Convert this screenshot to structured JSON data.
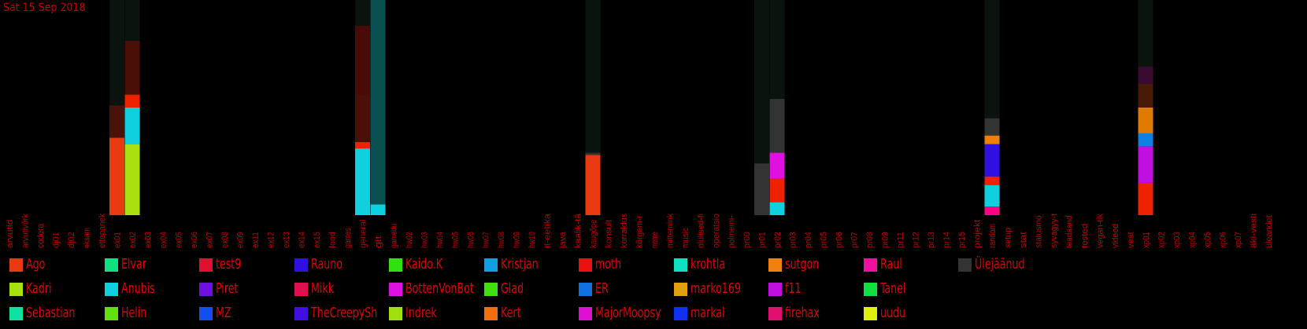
{
  "date": "Sat 15 Sep 2018",
  "colors": {
    "background": "#000000",
    "text": "#cc0000",
    "track": "#0b130f"
  },
  "chart_data": {
    "type": "bar",
    "stacked": true,
    "ylim": [
      0,
      100
    ],
    "categories": [
      "arvutid",
      "arvutivõrk",
      "codera",
      "dj01",
      "dj02",
      "eksam",
      "ettepanek",
      "ex01",
      "ex02",
      "ex03",
      "ex04",
      "ex05",
      "ex06",
      "ex07",
      "ex08",
      "ex09",
      "ex11",
      "ex12",
      "ex13",
      "ex14",
      "ex15",
      "food",
      "games",
      "general",
      "git",
      "gamedu",
      "hw02",
      "hw03",
      "hw04",
      "hw05",
      "hw06",
      "hw07",
      "hw08",
      "hw09",
      "hw10",
      "it-eetika",
      "java",
      "kaalik-tä",
      "kaugõpe",
      "konsult",
      "korraldus",
      "kõrgem-r",
      "meme",
      "mittemink",
      "music",
      "olulised-fi",
      "operatsio",
      "polmemi-",
      "pr00",
      "pr01",
      "pr02",
      "pr03",
      "pr04",
      "pr05",
      "pr06",
      "pr07",
      "pr08",
      "pr09",
      "pr11",
      "pr12",
      "pr13",
      "pr14",
      "pr15",
      "projekt",
      "random",
      "setup",
      "stat",
      "statusmo",
      "syvagyy-t",
      "teadaand",
      "tested",
      "vegan-tik",
      "videod",
      "vest",
      "xp01",
      "xp02",
      "xp03",
      "xp04",
      "xp05",
      "xp06",
      "xp07",
      "äki-vesti",
      "üleandet"
    ],
    "bars": [
      {
        "category": "ex01",
        "total": 100,
        "segments": [
          {
            "name": "Ago",
            "value": 36,
            "color": "#e83a10"
          },
          {
            "name": "moth",
            "value": 15,
            "color": "#4a1208"
          }
        ]
      },
      {
        "category": "ex02",
        "total": 100,
        "segments": [
          {
            "name": "Kadri",
            "value": 33,
            "color": "#a8e010"
          },
          {
            "name": "Anubis",
            "value": 17,
            "color": "#10d0e0"
          },
          {
            "name": "moth",
            "value": 6,
            "color": "#ee2200"
          },
          {
            "name": "Raul",
            "value": 25,
            "color": "#4a1008"
          }
        ]
      },
      {
        "category": "general",
        "total": 100,
        "segments": [
          {
            "name": "Anubis",
            "value": 31,
            "color": "#10d0e0"
          },
          {
            "name": "Ago",
            "value": 3,
            "color": "#ee2200"
          },
          {
            "name": "moth",
            "value": 22,
            "color": "#4a1008"
          },
          {
            "name": "Raul",
            "value": 32,
            "color": "#4a0a08"
          }
        ]
      },
      {
        "category": "git",
        "total": 100,
        "segments": [
          {
            "name": "Anubis",
            "value": 5,
            "color": "#10d0e0"
          },
          {
            "name": "Ülejäänud",
            "value": 95,
            "color": "#0b5050"
          }
        ]
      },
      {
        "category": "kaugõpe",
        "total": 100,
        "segments": [
          {
            "name": "Ago",
            "value": 28,
            "color": "#e83a10"
          },
          {
            "name": "Ülejäänud",
            "value": 1,
            "color": "#333333"
          }
        ]
      },
      {
        "category": "pr01",
        "total": 100,
        "segments": [
          {
            "name": "Ülejäänud",
            "value": 24,
            "color": "#333333"
          }
        ]
      },
      {
        "category": "pr02",
        "total": 100,
        "segments": [
          {
            "name": "Anubis",
            "value": 6,
            "color": "#10d0e0"
          },
          {
            "name": "moth",
            "value": 11,
            "color": "#ee2200"
          },
          {
            "name": "BottenVonBot",
            "value": 12,
            "color": "#e010e0"
          },
          {
            "name": "Ülejäänud",
            "value": 25,
            "color": "#333333"
          }
        ]
      },
      {
        "category": "random",
        "total": 100,
        "segments": [
          {
            "name": "Raul",
            "value": 4,
            "color": "#ff0080"
          },
          {
            "name": "Anubis",
            "value": 10,
            "color": "#10d0e0"
          },
          {
            "name": "moth",
            "value": 4,
            "color": "#ee2200"
          },
          {
            "name": "Rauno",
            "value": 15,
            "color": "#3010e0"
          },
          {
            "name": "sutgon",
            "value": 4,
            "color": "#f08000"
          },
          {
            "name": "Ülejäänud",
            "value": 8,
            "color": "#333333"
          }
        ]
      },
      {
        "category": "xp01",
        "total": 100,
        "segments": [
          {
            "name": "moth",
            "value": 15,
            "color": "#ee2200"
          },
          {
            "name": "f11",
            "value": 17,
            "color": "#c010e0"
          },
          {
            "name": "Kristjan",
            "value": 6,
            "color": "#1080e0"
          },
          {
            "name": "sutgon",
            "value": 12,
            "color": "#e07a00"
          },
          {
            "name": "Raul",
            "value": 11,
            "color": "#4a1a08"
          },
          {
            "name": "Elvar",
            "value": 8,
            "color": "#3a0a30"
          }
        ]
      }
    ],
    "legend": [
      {
        "name": "Ago",
        "color": "#e83a10"
      },
      {
        "name": "Kadri",
        "color": "#a8e010"
      },
      {
        "name": "Sebastian",
        "color": "#10e0a0"
      },
      {
        "name": "Elvar",
        "color": "#10e080"
      },
      {
        "name": "Anubis",
        "color": "#10d0e0"
      },
      {
        "name": "Helin",
        "color": "#60e010"
      },
      {
        "name": "test9",
        "color": "#e01030"
      },
      {
        "name": "Piret",
        "color": "#7010e0"
      },
      {
        "name": "MZ",
        "color": "#1050f0"
      },
      {
        "name": "Rauno",
        "color": "#3010e0"
      },
      {
        "name": "Mikk",
        "color": "#e01050"
      },
      {
        "name": "TheCreepySh",
        "color": "#4010e0"
      },
      {
        "name": "Kaido.K",
        "color": "#30e010"
      },
      {
        "name": "BottenVonBot",
        "color": "#e010e0"
      },
      {
        "name": "Indrek",
        "color": "#a0e010"
      },
      {
        "name": "Kristjan",
        "color": "#10a0e0"
      },
      {
        "name": "Glad",
        "color": "#40e010"
      },
      {
        "name": "Kert",
        "color": "#f07010"
      },
      {
        "name": "moth",
        "color": "#ee1010"
      },
      {
        "name": "ER",
        "color": "#1070e0"
      },
      {
        "name": "MajorMoopsy",
        "color": "#e010d0"
      },
      {
        "name": "krohtla",
        "color": "#10e0c0"
      },
      {
        "name": "marko169",
        "color": "#e0a010"
      },
      {
        "name": "markal",
        "color": "#1030f0"
      },
      {
        "name": "sutgon",
        "color": "#f08010"
      },
      {
        "name": "f11",
        "color": "#c010e0"
      },
      {
        "name": "firehax",
        "color": "#e01070"
      },
      {
        "name": "Raul",
        "color": "#f010a0"
      },
      {
        "name": "Tanel",
        "color": "#10e040"
      },
      {
        "name": "uudu",
        "color": "#e0f010"
      },
      {
        "name": "Ülejäänud",
        "color": "#333333"
      }
    ]
  }
}
